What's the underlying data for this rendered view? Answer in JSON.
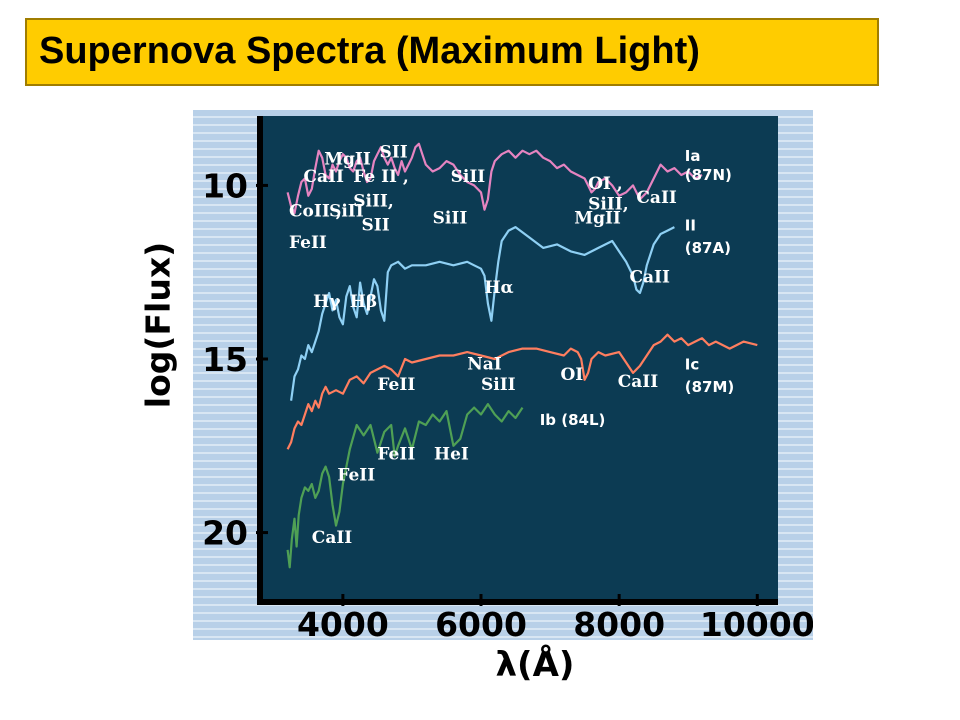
{
  "header": {
    "title": "Supernova Spectra (Maximum Light)"
  },
  "chart_data": {
    "type": "line",
    "title": "Supernova Spectra (Maximum Light)",
    "xlabel": "λ(Å)",
    "ylabel": "log(Flux)",
    "xlim": [
      2800,
      10300
    ],
    "ylim": [
      22,
      8
    ],
    "x_ticks": [
      4000,
      6000,
      8000,
      10000
    ],
    "x_tick_labels": [
      "4000",
      "6000",
      "8000",
      "10000"
    ],
    "y_ticks": [
      10,
      15,
      20
    ],
    "y_tick_labels": [
      "10",
      "15",
      "20"
    ],
    "y_inverted": true,
    "colors": {
      "panel": "#0c3b53",
      "plot_border": "#000000",
      "page_bg": "#b8d0e8",
      "title_bg": "#ffcc00"
    },
    "series": [
      {
        "name": "Ia (87N)",
        "color": "#e684c1",
        "x": [
          3200,
          3250,
          3300,
          3350,
          3400,
          3450,
          3500,
          3550,
          3600,
          3650,
          3700,
          3750,
          3800,
          3850,
          3900,
          3950,
          4000,
          4050,
          4100,
          4150,
          4200,
          4250,
          4300,
          4350,
          4400,
          4450,
          4500,
          4550,
          4600,
          4650,
          4700,
          4750,
          4800,
          4850,
          4900,
          4950,
          5000,
          5050,
          5100,
          5150,
          5200,
          5300,
          5400,
          5500,
          5600,
          5700,
          5800,
          5900,
          6000,
          6050,
          6100,
          6150,
          6200,
          6300,
          6400,
          6500,
          6600,
          6700,
          6800,
          6900,
          7000,
          7100,
          7200,
          7300,
          7400,
          7500,
          7550,
          7600,
          7650,
          7700,
          7800,
          7900,
          8000,
          8100,
          8200,
          8300,
          8400,
          8500,
          8600,
          8700,
          8800,
          8900,
          9000,
          9100,
          9200
        ],
        "y": [
          10.2,
          10.6,
          10.8,
          10.3,
          9.9,
          9.8,
          10.3,
          10.1,
          9.5,
          9.0,
          9.2,
          9.7,
          9.8,
          9.4,
          9.6,
          9.3,
          9.1,
          9.2,
          9.5,
          9.6,
          9.3,
          9.2,
          9.6,
          9.9,
          9.8,
          9.3,
          9.1,
          8.9,
          9.2,
          9.4,
          9.2,
          9.5,
          9.7,
          9.3,
          9.6,
          9.4,
          9.2,
          8.9,
          8.8,
          9.1,
          9.4,
          9.6,
          9.5,
          9.3,
          9.4,
          9.7,
          9.9,
          10.0,
          10.2,
          10.7,
          10.4,
          9.6,
          9.3,
          9.1,
          9.0,
          9.2,
          9.0,
          9.1,
          9.0,
          9.2,
          9.3,
          9.5,
          9.4,
          9.6,
          9.7,
          9.8,
          10.0,
          10.2,
          10.1,
          9.9,
          9.8,
          10.0,
          10.3,
          10.2,
          10.0,
          10.4,
          10.2,
          9.8,
          9.4,
          9.6,
          9.5,
          9.7,
          9.6,
          9.8,
          9.7
        ]
      },
      {
        "name": "II (87A)",
        "color": "#8fd0f4",
        "x": [
          3250,
          3300,
          3350,
          3400,
          3450,
          3500,
          3550,
          3600,
          3650,
          3700,
          3750,
          3800,
          3850,
          3900,
          3950,
          4000,
          4050,
          4100,
          4150,
          4200,
          4250,
          4300,
          4350,
          4400,
          4450,
          4500,
          4550,
          4600,
          4650,
          4700,
          4800,
          4900,
          5000,
          5200,
          5400,
          5600,
          5800,
          5900,
          6000,
          6050,
          6100,
          6150,
          6200,
          6250,
          6300,
          6400,
          6500,
          6700,
          6900,
          7100,
          7300,
          7500,
          7700,
          7900,
          8000,
          8100,
          8200,
          8250,
          8300,
          8350,
          8400,
          8500,
          8600,
          8700,
          8800
        ],
        "y": [
          16.2,
          15.5,
          15.3,
          14.9,
          15.0,
          14.6,
          14.8,
          14.5,
          14.2,
          13.7,
          13.4,
          13.1,
          13.6,
          13.3,
          13.8,
          14.0,
          13.2,
          12.9,
          13.5,
          13.8,
          12.8,
          13.4,
          13.7,
          13.2,
          12.7,
          12.9,
          13.6,
          13.9,
          12.5,
          12.3,
          12.2,
          12.4,
          12.3,
          12.3,
          12.2,
          12.3,
          12.2,
          12.3,
          12.4,
          12.6,
          13.4,
          13.9,
          13.0,
          12.2,
          11.6,
          11.3,
          11.2,
          11.5,
          11.8,
          11.7,
          11.9,
          12.0,
          11.8,
          11.6,
          11.9,
          12.2,
          12.6,
          13.0,
          13.1,
          12.8,
          12.3,
          11.7,
          11.4,
          11.3,
          11.2
        ]
      },
      {
        "name": "Ic (87M)",
        "color": "#ff7e5f",
        "x": [
          3200,
          3250,
          3300,
          3350,
          3400,
          3450,
          3500,
          3550,
          3600,
          3650,
          3700,
          3750,
          3800,
          3900,
          4000,
          4100,
          4200,
          4300,
          4400,
          4500,
          4600,
          4700,
          4800,
          4900,
          5000,
          5200,
          5400,
          5600,
          5800,
          6000,
          6200,
          6400,
          6600,
          6800,
          7000,
          7200,
          7300,
          7400,
          7450,
          7500,
          7550,
          7600,
          7700,
          7800,
          8000,
          8100,
          8200,
          8300,
          8400,
          8500,
          8600,
          8700,
          8800,
          8900,
          9000,
          9100,
          9200,
          9300,
          9400,
          9600,
          9800,
          10000
        ],
        "y": [
          17.6,
          17.4,
          17.0,
          16.8,
          16.9,
          16.6,
          16.3,
          16.5,
          16.2,
          16.4,
          16.0,
          15.8,
          16.0,
          15.9,
          16.0,
          15.6,
          15.5,
          15.7,
          15.4,
          15.3,
          15.2,
          15.3,
          15.5,
          15.0,
          15.1,
          15.0,
          14.9,
          14.9,
          14.8,
          14.9,
          15.0,
          14.8,
          14.7,
          14.7,
          14.8,
          14.9,
          14.7,
          14.8,
          15.0,
          15.6,
          15.4,
          15.0,
          14.8,
          14.9,
          14.8,
          15.1,
          15.4,
          15.2,
          14.9,
          14.6,
          14.5,
          14.3,
          14.5,
          14.4,
          14.6,
          14.5,
          14.4,
          14.6,
          14.5,
          14.7,
          14.5,
          14.6
        ]
      },
      {
        "name": "Ib (84L)",
        "color": "#4fa055",
        "x": [
          3200,
          3230,
          3260,
          3300,
          3330,
          3360,
          3400,
          3450,
          3500,
          3550,
          3600,
          3650,
          3700,
          3750,
          3800,
          3850,
          3900,
          3950,
          4000,
          4100,
          4200,
          4300,
          4400,
          4500,
          4600,
          4700,
          4750,
          4800,
          4900,
          5000,
          5100,
          5200,
          5300,
          5400,
          5500,
          5600,
          5700,
          5800,
          5900,
          6000,
          6100,
          6200,
          6300,
          6400,
          6500,
          6600
        ],
        "y": [
          20.5,
          21.0,
          20.2,
          19.6,
          20.4,
          19.5,
          19.0,
          18.7,
          18.8,
          18.6,
          19.0,
          18.8,
          18.3,
          18.1,
          18.4,
          19.2,
          19.8,
          19.4,
          18.6,
          17.6,
          16.9,
          17.2,
          16.9,
          17.7,
          17.1,
          16.9,
          17.8,
          17.5,
          17.0,
          17.6,
          16.8,
          16.9,
          16.6,
          16.8,
          16.5,
          17.5,
          17.3,
          16.6,
          16.4,
          16.6,
          16.3,
          16.6,
          16.8,
          16.5,
          16.7,
          16.4
        ]
      }
    ],
    "annotations": [
      {
        "text": "MgII",
        "x": 3730,
        "y": 9.4
      },
      {
        "text": "SII",
        "x": 4530,
        "y": 9.2
      },
      {
        "text": "CaII",
        "x": 3430,
        "y": 9.9
      },
      {
        "text": "Fe II ,",
        "x": 4150,
        "y": 9.9
      },
      {
        "text": "SiII",
        "x": 5560,
        "y": 9.9
      },
      {
        "text": "OI ,",
        "x": 7550,
        "y": 10.1
      },
      {
        "text": "CoII ,",
        "x": 3220,
        "y": 10.9
      },
      {
        "text": "SiII",
        "x": 3800,
        "y": 10.9
      },
      {
        "text": "SiII,",
        "x": 4150,
        "y": 10.6
      },
      {
        "text": "SiII,",
        "x": 7550,
        "y": 10.7
      },
      {
        "text": "CaII",
        "x": 8250,
        "y": 10.5
      },
      {
        "text": "SII",
        "x": 4270,
        "y": 11.3
      },
      {
        "text": "SiII",
        "x": 5300,
        "y": 11.1
      },
      {
        "text": "MgII",
        "x": 7350,
        "y": 11.1
      },
      {
        "text": "FeII",
        "x": 3220,
        "y": 11.8
      },
      {
        "text": "Hγ",
        "x": 3570,
        "y": 13.5
      },
      {
        "text": "Hβ",
        "x": 4100,
        "y": 13.5
      },
      {
        "text": "Hα",
        "x": 6050,
        "y": 13.1
      },
      {
        "text": "CaII",
        "x": 8150,
        "y": 12.8
      },
      {
        "text": "NaI",
        "x": 5800,
        "y": 15.3
      },
      {
        "text": "SiII",
        "x": 6000,
        "y": 15.9
      },
      {
        "text": "FeII",
        "x": 4500,
        "y": 15.9
      },
      {
        "text": "OI",
        "x": 7150,
        "y": 15.6
      },
      {
        "text": "CaII",
        "x": 7980,
        "y": 15.8
      },
      {
        "text": "FeII",
        "x": 4500,
        "y": 17.9
      },
      {
        "text": "HeI",
        "x": 5320,
        "y": 17.9
      },
      {
        "text": "FeII",
        "x": 3920,
        "y": 18.5
      },
      {
        "text": "CaII",
        "x": 3550,
        "y": 20.3
      }
    ],
    "type_labels": [
      {
        "text": "Ia",
        "x": 8950,
        "y": 9.3
      },
      {
        "text": "(87N)",
        "x": 8950,
        "y": 9.85
      },
      {
        "text": "II",
        "x": 8950,
        "y": 11.3
      },
      {
        "text": "(87A)",
        "x": 8950,
        "y": 11.95
      },
      {
        "text": "Ic",
        "x": 8950,
        "y": 15.3
      },
      {
        "text": "(87M)",
        "x": 8950,
        "y": 15.95
      },
      {
        "text": "Ib (84L)",
        "x": 6850,
        "y": 16.9
      }
    ]
  }
}
